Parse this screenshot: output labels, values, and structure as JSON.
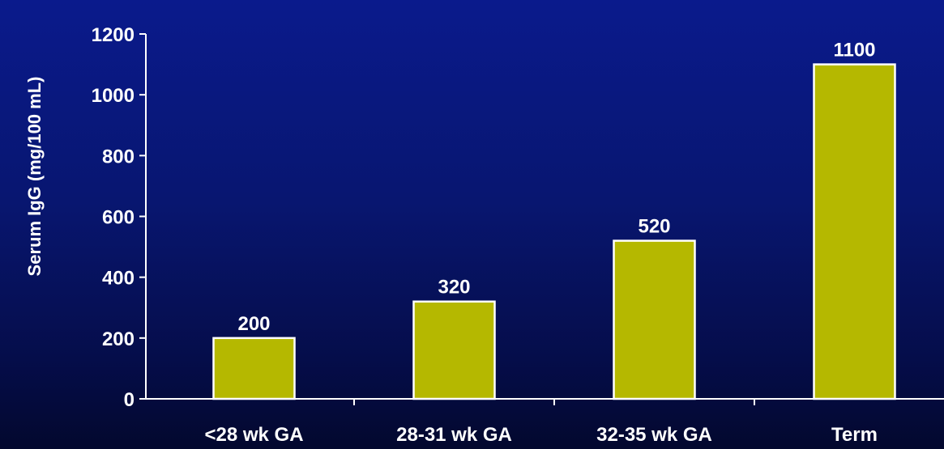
{
  "chart_data": {
    "type": "bar",
    "title": "",
    "xlabel": "",
    "ylabel": "Serum IgG (mg/100 mL)",
    "categories": [
      "<28 wk GA",
      "28-31 wk GA",
      "32-35 wk GA",
      "Term"
    ],
    "values": [
      200,
      320,
      520,
      1100
    ],
    "data_labels": [
      "200",
      "320",
      "520",
      "1100"
    ],
    "ylim": [
      0,
      1200
    ],
    "yticks": [
      0,
      200,
      400,
      600,
      800,
      1000,
      1200
    ],
    "grid": false,
    "legend": "none",
    "colors": {
      "bar_fill": "#b5b800",
      "bar_stroke": "#ffffff",
      "axis": "#ffffff",
      "text": "#ffffff",
      "background_top": "#0a1a8c",
      "background_bottom": "#03082e"
    }
  }
}
